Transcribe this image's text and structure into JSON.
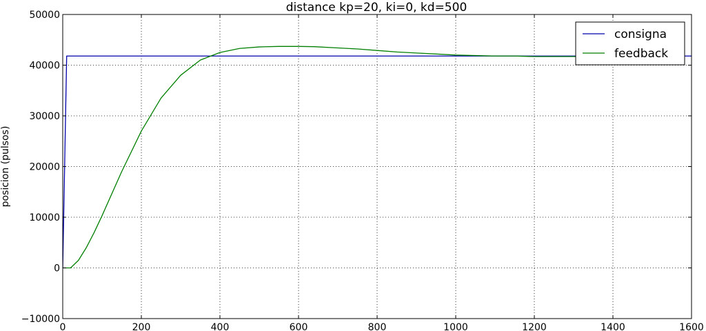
{
  "chart_data": {
    "type": "line",
    "title": "distance kp=20, ki=0, kd=500",
    "xlabel": "",
    "ylabel": "posicion (pulsos)",
    "xlim": [
      0,
      1600
    ],
    "ylim": [
      -10000,
      50000
    ],
    "xticks": [
      0,
      200,
      400,
      600,
      800,
      1000,
      1200,
      1400,
      1600
    ],
    "yticks": [
      -10000,
      0,
      10000,
      20000,
      30000,
      40000,
      50000
    ],
    "xtick_labels": [
      "0",
      "200",
      "400",
      "600",
      "800",
      "1000",
      "1200",
      "1400",
      "1600"
    ],
    "ytick_labels": [
      "−10000",
      "0",
      "10000",
      "20000",
      "30000",
      "40000",
      "50000"
    ],
    "grid": true,
    "legend_position": "top-right",
    "series": [
      {
        "name": "consigna",
        "color": "#0000aa",
        "x": [
          0,
          10,
          1600
        ],
        "y": [
          0,
          41800,
          41800
        ]
      },
      {
        "name": "feedback",
        "color": "#007f00",
        "x": [
          0,
          10,
          20,
          40,
          60,
          80,
          100,
          150,
          200,
          250,
          300,
          350,
          400,
          450,
          500,
          550,
          600,
          640,
          700,
          750,
          800,
          850,
          900,
          950,
          1000,
          1050,
          1100,
          1150,
          1200,
          1250,
          1300,
          1350,
          1400
        ],
        "y": [
          0,
          0,
          0,
          1500,
          4000,
          7000,
          10300,
          19000,
          27000,
          33500,
          38000,
          41000,
          42500,
          43300,
          43600,
          43700,
          43700,
          43650,
          43400,
          43200,
          42900,
          42600,
          42400,
          42200,
          42000,
          41900,
          41800,
          41800,
          41700,
          41700,
          41700,
          41700,
          41700
        ]
      }
    ]
  }
}
